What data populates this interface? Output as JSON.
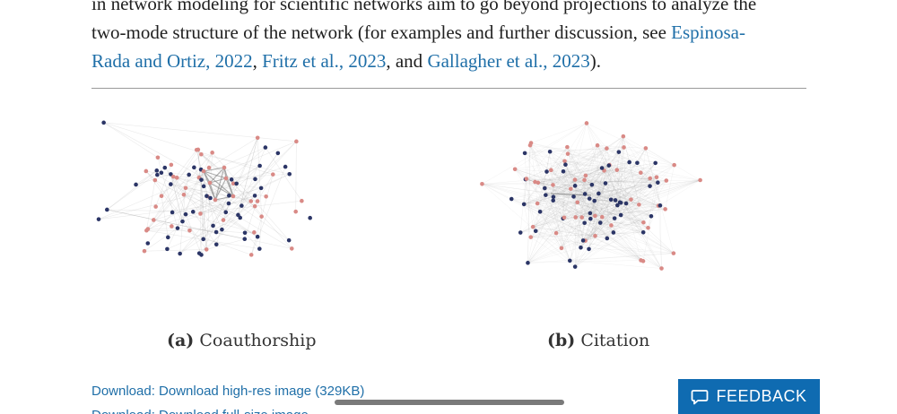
{
  "article": {
    "line0": "in network modeling for scientific networks aim to go beyond projections to analyze the",
    "line1_text": "two-mode structure of the network (for examples and further discussion, see ",
    "link1a": "Espinosa-",
    "link1b": "Rada and Ortiz, 2022",
    "sep1": ", ",
    "link2": "Fritz et al., 2023",
    "sep2": ", and ",
    "link3": "Gallagher et al., 2023",
    "end": ")."
  },
  "figure": {
    "caption_a_label": "(a)",
    "caption_a_text": "Coauthorship",
    "caption_b_label": "(b)",
    "caption_b_text": "Citation"
  },
  "links": {
    "download_image": "Download: Download high-res image (329KB)",
    "download_full": "Download: Download full-size image"
  },
  "feedback": {
    "label": "FEEDBACK",
    "icon": "speech-bubble-icon"
  },
  "colors": {
    "link": "#1f6fa8",
    "feedback_bg": "#0f6bb1",
    "node_red": "#d98a86",
    "node_blue": "#2b3566"
  }
}
